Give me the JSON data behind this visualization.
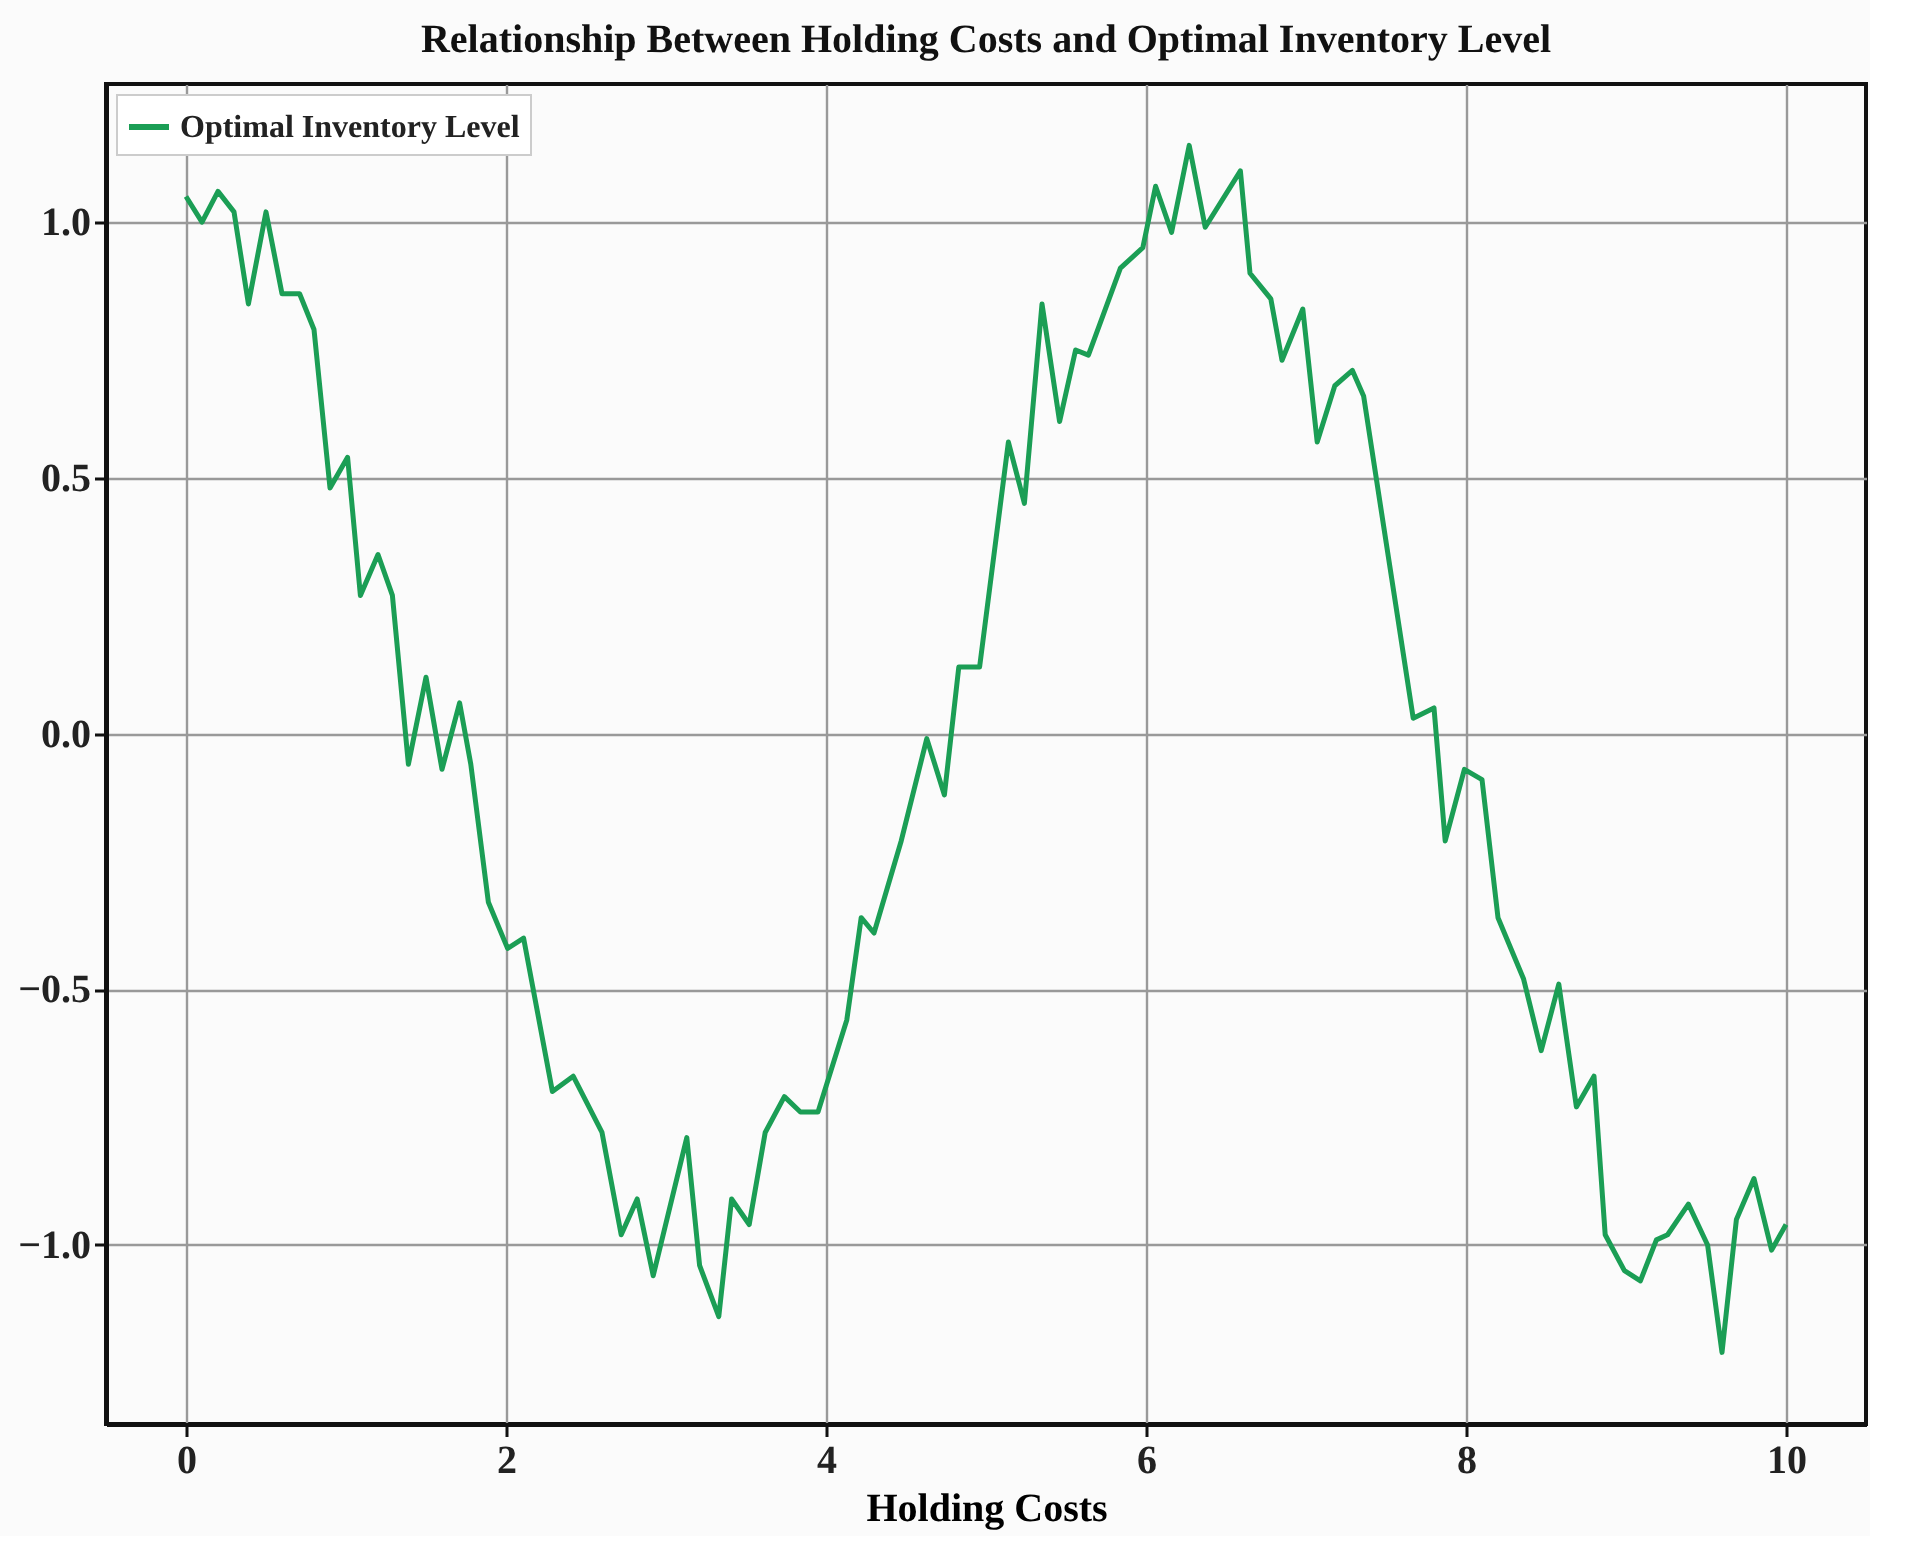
{
  "chart_data": {
    "type": "line",
    "title": "Relationship Between Holding Costs and Optimal Inventory Level",
    "xlabel": "Holding Costs",
    "x": [
      0,
      0.1,
      0.2,
      0.3,
      0.39,
      0.5,
      0.6,
      0.71,
      0.8,
      0.9,
      1.01,
      1.09,
      1.2,
      1.29,
      1.39,
      1.5,
      1.6,
      1.71,
      1.78,
      1.89,
      2.01,
      2.11,
      2.29,
      2.42,
      2.6,
      2.72,
      2.82,
      2.92,
      3.13,
      3.21,
      3.33,
      3.41,
      3.52,
      3.62,
      3.74,
      3.84,
      3.95,
      4.13,
      4.22,
      4.3,
      4.47,
      4.63,
      4.74,
      4.83,
      4.96,
      5.14,
      5.24,
      5.35,
      5.46,
      5.56,
      5.64,
      5.84,
      5.98,
      6.06,
      6.16,
      6.27,
      6.37,
      6.59,
      6.65,
      6.78,
      6.85,
      6.98,
      7.07,
      7.18,
      7.29,
      7.36,
      7.67,
      7.8,
      7.87,
      7.99,
      8.1,
      8.2,
      8.36,
      8.47,
      8.58,
      8.69,
      8.8,
      8.87,
      8.99,
      9.09,
      9.19,
      9.26,
      9.39,
      9.51,
      9.6,
      9.69,
      9.8,
      9.91,
      10.0
    ],
    "series": [
      {
        "name": "Optimal Inventory Level",
        "color": "#1b9e55",
        "values": [
          1.05,
          1.0,
          1.06,
          1.02,
          0.84,
          1.02,
          0.86,
          0.86,
          0.79,
          0.48,
          0.54,
          0.27,
          0.35,
          0.27,
          -0.06,
          0.11,
          -0.07,
          0.06,
          -0.06,
          -0.33,
          -0.42,
          -0.4,
          -0.7,
          -0.67,
          -0.78,
          -0.98,
          -0.91,
          -1.06,
          -0.79,
          -1.04,
          -1.14,
          -0.91,
          -0.96,
          -0.78,
          -0.71,
          -0.74,
          -0.74,
          -0.56,
          -0.36,
          -0.39,
          -0.21,
          -0.01,
          -0.12,
          0.13,
          0.13,
          0.57,
          0.45,
          0.84,
          0.61,
          0.75,
          0.74,
          0.91,
          0.95,
          1.07,
          0.98,
          1.15,
          0.99,
          1.1,
          0.9,
          0.85,
          0.73,
          0.83,
          0.57,
          0.68,
          0.71,
          0.66,
          0.03,
          0.05,
          -0.21,
          -0.07,
          -0.09,
          -0.36,
          -0.48,
          -0.62,
          -0.49,
          -0.73,
          -0.67,
          -0.98,
          -1.05,
          -1.07,
          -0.99,
          -0.98,
          -0.92,
          -1.0,
          -1.21,
          -0.95,
          -0.87,
          -1.01,
          -0.96
        ]
      }
    ],
    "xlim": [
      -0.5,
      10.5
    ],
    "ylim": [
      -1.35,
      1.27
    ],
    "xticks": [
      0,
      2,
      4,
      6,
      8,
      10
    ],
    "yticks": [
      {
        "value": -1,
        "label": "−1.0"
      },
      {
        "value": -0.5,
        "label": "−0.5"
      },
      {
        "value": 0,
        "label": "0.0"
      },
      {
        "value": 0.5,
        "label": "0.5"
      },
      {
        "value": 1,
        "label": "1.0"
      }
    ],
    "grid": true,
    "legend": "top left",
    "line_style": "solid",
    "marker": "none"
  }
}
